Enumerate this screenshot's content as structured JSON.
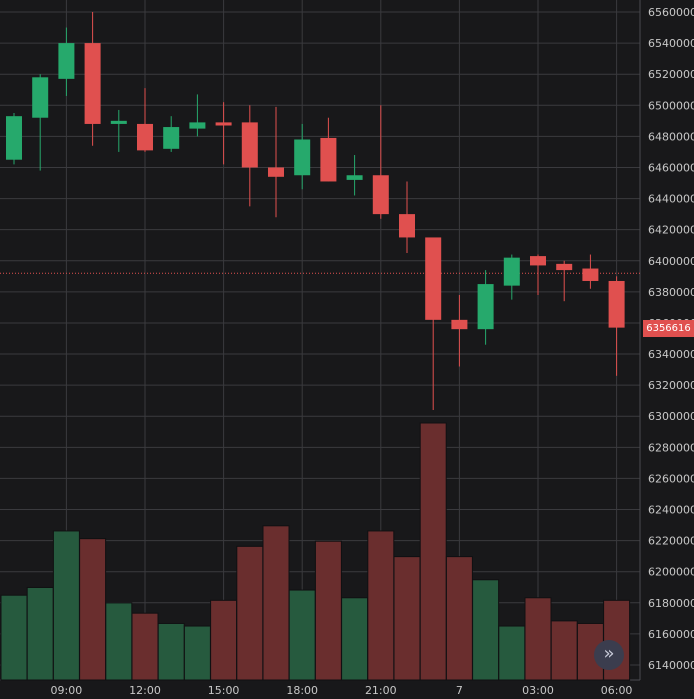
{
  "chart_data": {
    "type": "candlestick",
    "x_tick_labels": [
      "09:00",
      "12:00",
      "15:00",
      "18:00",
      "21:00",
      "7",
      "03:00",
      "06:00"
    ],
    "y_tick_labels": [
      "6560000",
      "6540000",
      "6520000",
      "6500000",
      "6480000",
      "6460000",
      "6440000",
      "6420000",
      "6400000",
      "6380000",
      "6360000",
      "6340000",
      "6320000",
      "6300000",
      "6280000",
      "6260000",
      "6240000",
      "6220000",
      "6200000",
      "6180000",
      "6160000",
      "6140000"
    ],
    "ylim": [
      6134000,
      6562000
    ],
    "last_price": 6356616,
    "last_price_label": "6356616",
    "reference_line": 6392000,
    "colors": {
      "up": "#26a96c",
      "down": "#e0504f",
      "volume_up": "#265a3e",
      "volume_down": "#6a2e2e",
      "grid": "#3a3a3e",
      "text": "#c8c8c8",
      "background": "#18181a"
    },
    "candles": [
      {
        "open": 6465000,
        "high": 6495000,
        "low": 6462000,
        "close": 6493000,
        "volume": 0.33
      },
      {
        "open": 6492000,
        "high": 6520000,
        "low": 6458000,
        "close": 6518000,
        "volume": 0.36
      },
      {
        "open": 6517000,
        "high": 6550000,
        "low": 6506000,
        "close": 6540000,
        "volume": 0.58
      },
      {
        "open": 6540000,
        "high": 6560000,
        "low": 6474000,
        "close": 6488000,
        "volume": 0.55
      },
      {
        "open": 6488000,
        "high": 6497000,
        "low": 6470000,
        "close": 6490000,
        "volume": 0.3
      },
      {
        "open": 6488000,
        "high": 6511000,
        "low": 6470000,
        "close": 6471000,
        "volume": 0.26
      },
      {
        "open": 6472000,
        "high": 6493000,
        "low": 6470000,
        "close": 6486000,
        "volume": 0.22
      },
      {
        "open": 6485000,
        "high": 6507000,
        "low": 6480000,
        "close": 6489000,
        "volume": 0.21
      },
      {
        "open": 6489000,
        "high": 6502000,
        "low": 6462000,
        "close": 6487000,
        "volume": 0.31
      },
      {
        "open": 6489000,
        "high": 6500000,
        "low": 6435000,
        "close": 6460000,
        "volume": 0.52
      },
      {
        "open": 6460000,
        "high": 6499000,
        "low": 6428000,
        "close": 6454000,
        "volume": 0.6
      },
      {
        "open": 6455000,
        "high": 6488000,
        "low": 6446000,
        "close": 6478000,
        "volume": 0.35
      },
      {
        "open": 6479000,
        "high": 6492000,
        "low": 6451000,
        "close": 6451000,
        "volume": 0.54
      },
      {
        "open": 6452000,
        "high": 6468000,
        "low": 6442000,
        "close": 6455000,
        "volume": 0.32
      },
      {
        "open": 6455000,
        "high": 6500000,
        "low": 6427000,
        "close": 6430000,
        "volume": 0.58
      },
      {
        "open": 6430000,
        "high": 6451000,
        "low": 6405000,
        "close": 6415000,
        "volume": 0.48
      },
      {
        "open": 6415000,
        "high": 6415000,
        "low": 6304000,
        "close": 6362000,
        "volume": 1.0
      },
      {
        "open": 6362000,
        "high": 6378000,
        "low": 6332000,
        "close": 6356000,
        "volume": 0.48
      },
      {
        "open": 6356000,
        "high": 6394000,
        "low": 6346000,
        "close": 6385000,
        "volume": 0.39
      },
      {
        "open": 6384000,
        "high": 6404000,
        "low": 6375000,
        "close": 6402000,
        "volume": 0.21
      },
      {
        "open": 6403000,
        "high": 6404000,
        "low": 6378000,
        "close": 6397000,
        "volume": 0.32
      },
      {
        "open": 6398000,
        "high": 6400000,
        "low": 6374000,
        "close": 6394000,
        "volume": 0.23
      },
      {
        "open": 6395000,
        "high": 6404000,
        "low": 6382000,
        "close": 6387000,
        "volume": 0.22
      },
      {
        "open": 6387000,
        "high": 6390000,
        "low": 6326000,
        "close": 6357000,
        "volume": 0.31
      }
    ]
  },
  "controls": {
    "scroll_icon": "double-chevron-right-icon",
    "scroll_glyph": "»"
  }
}
